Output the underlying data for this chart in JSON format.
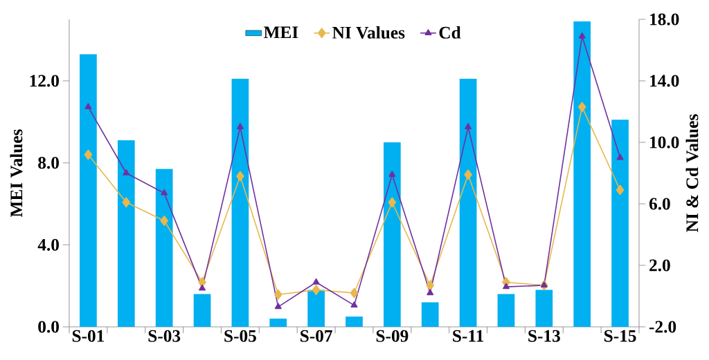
{
  "chart_data": {
    "type": "bar",
    "categories": [
      "S-01",
      null,
      "S-03",
      null,
      "S-05",
      null,
      "S-07",
      null,
      "S-09",
      null,
      "S-11",
      null,
      "S-13",
      null,
      "S-15"
    ],
    "ylabel": "MEI Values",
    "y2label": "NI & Cd Values",
    "ylim": [
      0,
      15
    ],
    "yticks": [
      {
        "value": 0,
        "label": "0.0"
      },
      {
        "value": 4,
        "label": "4.0"
      },
      {
        "value": 8,
        "label": "8.0"
      },
      {
        "value": 12,
        "label": "12.0"
      }
    ],
    "y2lim": [
      -2,
      18
    ],
    "y2ticks": [
      {
        "value": -2,
        "label": "-2.0"
      },
      {
        "value": 2,
        "label": "2.0"
      },
      {
        "value": 6,
        "label": "6.0"
      },
      {
        "value": 10,
        "label": "10.0"
      },
      {
        "value": 14,
        "label": "14.0"
      },
      {
        "value": 18,
        "label": "18.0"
      }
    ],
    "legend": "top",
    "grid": false,
    "series": [
      {
        "name": "MEI",
        "type": "bar",
        "color": "#00b0f0",
        "values": [
          13.3,
          9.1,
          7.7,
          1.6,
          12.1,
          0.4,
          1.8,
          0.5,
          9.0,
          1.2,
          12.1,
          1.6,
          1.8,
          14.9,
          10.1
        ]
      },
      {
        "name": "NI Values",
        "type": "line",
        "axis": "y2",
        "marker": "diamond",
        "color": "#e8b84e",
        "values": [
          9.2,
          6.1,
          4.9,
          0.9,
          7.8,
          0.1,
          0.4,
          0.2,
          6.1,
          0.7,
          7.9,
          0.9,
          0.7,
          12.3,
          6.9
        ]
      },
      {
        "name": "Cd",
        "type": "line",
        "axis": "y2",
        "marker": "triangle",
        "color": "#7030a0",
        "values": [
          12.3,
          8.0,
          6.7,
          0.5,
          11.0,
          -0.7,
          0.9,
          -0.6,
          7.9,
          0.2,
          11.0,
          0.6,
          0.7,
          16.9,
          9.0
        ]
      }
    ]
  }
}
